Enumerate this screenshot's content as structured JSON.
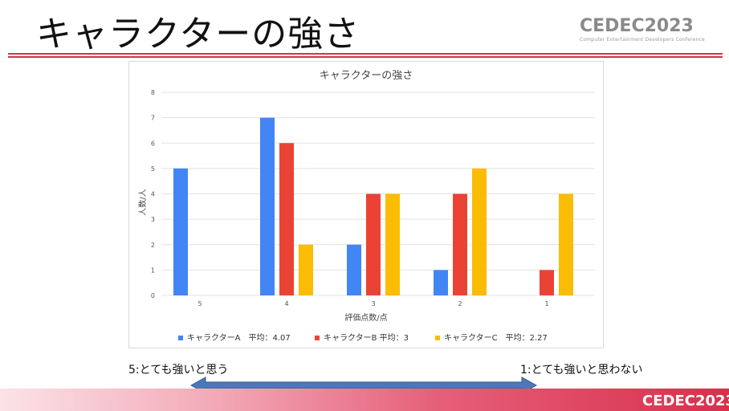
{
  "slide": {
    "title": "キャラクターの強さ",
    "logo_text": "CEDEC2023",
    "logo_subtext": "Computer Entertainment Developers Conference",
    "scale_left": "5:とても強いと思う",
    "scale_right": "1:とても強いと思わない"
  },
  "colors": {
    "accent": "#d2344d",
    "arrow": "#4472c4"
  },
  "chart_data": {
    "type": "bar",
    "title": "キャラクターの強さ",
    "xlabel": "評価点数/点",
    "ylabel": "人数/人",
    "categories": [
      "5",
      "4",
      "3",
      "2",
      "1"
    ],
    "ylim": [
      0,
      8
    ],
    "yticks": [
      0,
      1,
      2,
      3,
      4,
      5,
      6,
      7,
      8
    ],
    "grid": true,
    "legend_position": "bottom",
    "series": [
      {
        "name": "キャラクターA　平均：4.07",
        "color": "#4285f4",
        "values": [
          5,
          7,
          2,
          1,
          0
        ]
      },
      {
        "name": "キャラクターB 平均：3",
        "color": "#ea4335",
        "values": [
          0,
          6,
          4,
          4,
          1
        ]
      },
      {
        "name": "キャラクターC　平均：2.27",
        "color": "#fbbc04",
        "values": [
          0,
          2,
          4,
          5,
          4
        ]
      }
    ]
  }
}
